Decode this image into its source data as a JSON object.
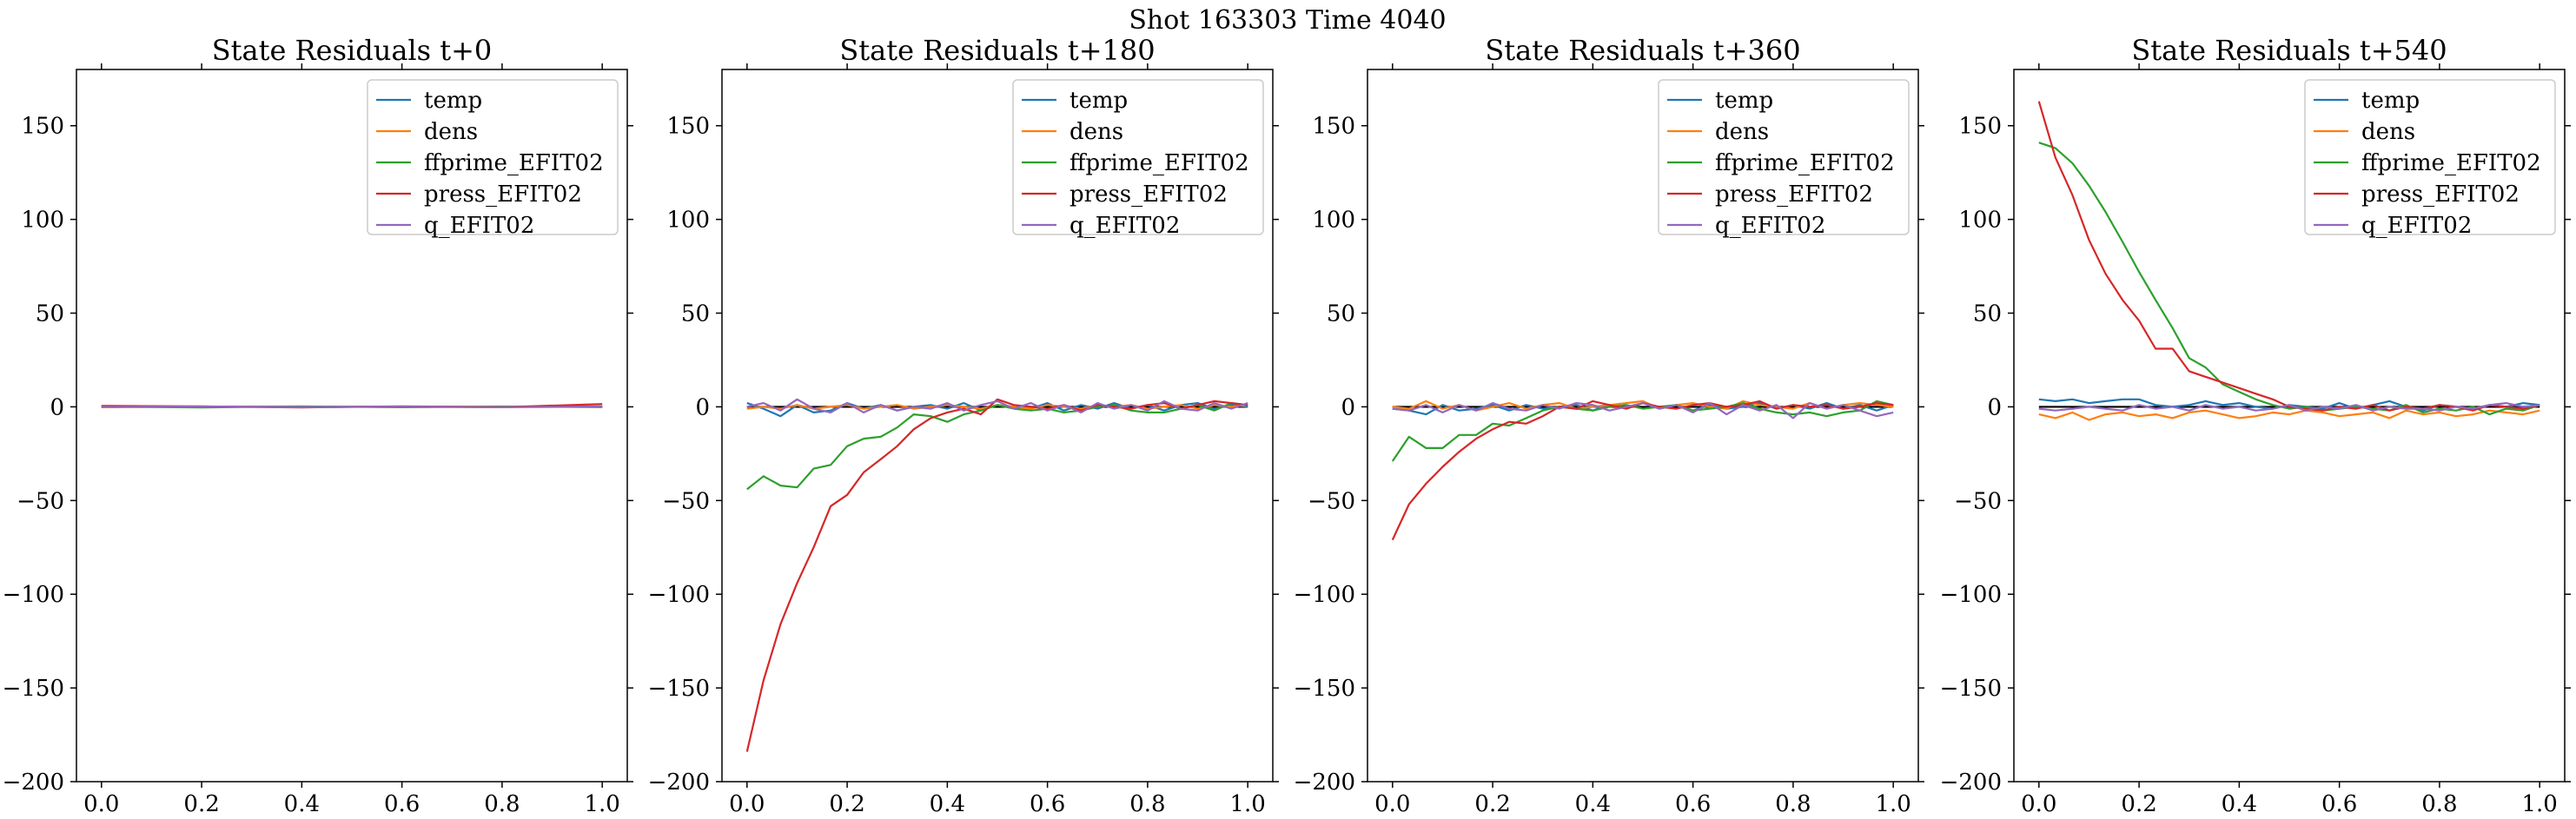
{
  "figure": {
    "suptitle": "Shot 163303   Time 4040"
  },
  "colors": {
    "temp": "#1f77b4",
    "dens": "#ff7f0e",
    "ffprime_EFIT02": "#2ca02c",
    "press_EFIT02": "#d62728",
    "q_EFIT02": "#9467bd",
    "zero_line": "#000000"
  },
  "chart_data": [
    {
      "type": "line",
      "title": "State Residuals t+0",
      "xlim": [
        -0.05,
        1.05
      ],
      "ylim": [
        -200,
        180
      ],
      "xticks": [
        "0.0",
        "0.2",
        "0.4",
        "0.6",
        "0.8",
        "1.0"
      ],
      "yticks": [
        "150",
        "100",
        "50",
        "0",
        "−50",
        "−100",
        "−150",
        "−200"
      ],
      "legend_position": "upper right",
      "x": [
        0.0,
        0.2,
        0.4,
        0.6,
        0.8,
        1.0
      ],
      "series": [
        {
          "name": "temp",
          "values": [
            0.3,
            0.2,
            -0.2,
            0.1,
            -0.1,
            0.3
          ]
        },
        {
          "name": "dens",
          "values": [
            -0.2,
            0.1,
            0.2,
            -0.1,
            0.2,
            -0.2
          ]
        },
        {
          "name": "ffprime_EFIT02",
          "values": [
            0.1,
            -0.3,
            0.2,
            -0.2,
            0.1,
            0.0
          ]
        },
        {
          "name": "press_EFIT02",
          "values": [
            0.5,
            0.2,
            -0.3,
            0.3,
            -0.2,
            1.5
          ]
        },
        {
          "name": "q_EFIT02",
          "values": [
            -0.1,
            0.2,
            -0.1,
            0.1,
            -0.2,
            0.1
          ]
        }
      ]
    },
    {
      "type": "line",
      "title": "State Residuals t+180",
      "xlim": [
        -0.05,
        1.05
      ],
      "ylim": [
        -200,
        180
      ],
      "xticks": [
        "0.0",
        "0.2",
        "0.4",
        "0.6",
        "0.8",
        "1.0"
      ],
      "yticks": [
        "150",
        "100",
        "50",
        "0",
        "−50",
        "−100",
        "−150",
        "−200"
      ],
      "legend_position": "upper right",
      "x": [
        0.0,
        0.033,
        0.067,
        0.1,
        0.133,
        0.167,
        0.2,
        0.233,
        0.267,
        0.3,
        0.333,
        0.367,
        0.4,
        0.433,
        0.467,
        0.5,
        0.533,
        0.567,
        0.6,
        0.633,
        0.667,
        0.7,
        0.733,
        0.767,
        0.8,
        0.833,
        0.867,
        0.9,
        0.933,
        0.967,
        1.0
      ],
      "series": [
        {
          "name": "temp",
          "values": [
            2,
            -1,
            -5,
            1,
            -3,
            -2,
            2,
            -1,
            1,
            -2,
            0,
            1,
            -1,
            2,
            -2,
            1,
            0,
            -1,
            2,
            -2,
            1,
            -1,
            2,
            -1,
            1,
            -2,
            1,
            2,
            -1,
            1,
            0
          ]
        },
        {
          "name": "dens",
          "values": [
            -1,
            0,
            -1,
            1,
            -1,
            0,
            1,
            -1,
            0,
            1,
            -1,
            0,
            1,
            0,
            -1,
            1,
            0,
            -1,
            1,
            0,
            -1,
            1,
            0,
            1,
            -1,
            0,
            1,
            -1,
            1,
            0,
            1
          ]
        },
        {
          "name": "ffprime_EFIT02",
          "values": [
            -44,
            -37,
            -42,
            -43,
            -33,
            -31,
            -21,
            -17,
            -16,
            -11,
            -4,
            -5,
            -8,
            -4,
            -2,
            1,
            -1,
            -2,
            -1,
            -3,
            -2,
            0,
            1,
            -2,
            -3,
            -3,
            -1,
            1,
            -2,
            2,
            1
          ]
        },
        {
          "name": "press_EFIT02",
          "values": [
            -184,
            -146,
            -116,
            -94,
            -75,
            -53,
            -47,
            -35,
            -28,
            -21,
            -12,
            -6,
            -3,
            -1,
            -4,
            4,
            1,
            0,
            -1,
            1,
            -2,
            1,
            0,
            -1,
            1,
            2,
            -1,
            1,
            3,
            2,
            1
          ]
        },
        {
          "name": "q_EFIT02",
          "values": [
            0,
            2,
            -2,
            4,
            -1,
            -3,
            2,
            -3,
            1,
            -2,
            0,
            -1,
            2,
            -2,
            1,
            3,
            -1,
            2,
            -2,
            1,
            -3,
            2,
            -1,
            1,
            -2,
            3,
            -1,
            -2,
            2,
            -1,
            2
          ]
        }
      ]
    },
    {
      "type": "line",
      "title": "State Residuals t+360",
      "xlim": [
        -0.05,
        1.05
      ],
      "ylim": [
        -200,
        180
      ],
      "xticks": [
        "0.0",
        "0.2",
        "0.4",
        "0.6",
        "0.8",
        "1.0"
      ],
      "yticks": [
        "150",
        "100",
        "50",
        "0",
        "−50",
        "−100",
        "−150",
        "−200"
      ],
      "legend_position": "upper right",
      "x": [
        0.0,
        0.033,
        0.067,
        0.1,
        0.133,
        0.167,
        0.2,
        0.233,
        0.267,
        0.3,
        0.333,
        0.367,
        0.4,
        0.433,
        0.467,
        0.5,
        0.533,
        0.567,
        0.6,
        0.633,
        0.667,
        0.7,
        0.733,
        0.767,
        0.8,
        0.833,
        0.867,
        0.9,
        0.933,
        0.967,
        1.0
      ],
      "series": [
        {
          "name": "temp",
          "values": [
            -1,
            -2,
            -4,
            1,
            -2,
            -1,
            1,
            -2,
            1,
            -1,
            0,
            1,
            -2,
            1,
            -1,
            2,
            -1,
            1,
            -2,
            1,
            -1,
            0,
            2,
            -1,
            1,
            -1,
            2,
            -1,
            1,
            -2,
            1
          ]
        },
        {
          "name": "dens",
          "values": [
            0,
            -1,
            3,
            -1,
            1,
            -2,
            0,
            2,
            -1,
            1,
            2,
            -1,
            0,
            1,
            2,
            3,
            -1,
            1,
            2,
            0,
            -1,
            3,
            1,
            0,
            -1,
            2,
            -1,
            1,
            2,
            1,
            0
          ]
        },
        {
          "name": "ffprime_EFIT02",
          "values": [
            -29,
            -16,
            -22,
            -22,
            -15,
            -15,
            -9,
            -10,
            -6,
            -2,
            0,
            -1,
            -2,
            0,
            1,
            -1,
            0,
            1,
            -2,
            -1,
            0,
            2,
            -1,
            -3,
            -4,
            -3,
            -5,
            -3,
            -2,
            3,
            1
          ]
        },
        {
          "name": "press_EFIT02",
          "values": [
            -71,
            -52,
            -41,
            -32,
            -24,
            -17,
            -12,
            -8,
            -9,
            -5,
            0,
            -1,
            3,
            1,
            -1,
            2,
            0,
            -1,
            1,
            2,
            0,
            1,
            3,
            -1,
            1,
            0,
            1,
            -1,
            0,
            2,
            1
          ]
        },
        {
          "name": "q_EFIT02",
          "values": [
            -1,
            -2,
            1,
            -3,
            1,
            -2,
            2,
            -1,
            -2,
            1,
            -1,
            2,
            1,
            -2,
            0,
            2,
            -1,
            1,
            -3,
            2,
            -4,
            1,
            -2,
            1,
            -6,
            2,
            -1,
            1,
            -2,
            -5,
            -3
          ]
        }
      ]
    },
    {
      "type": "line",
      "title": "State Residuals t+540",
      "xlim": [
        -0.05,
        1.05
      ],
      "ylim": [
        -200,
        180
      ],
      "xticks": [
        "0.0",
        "0.2",
        "0.4",
        "0.6",
        "0.8",
        "1.0"
      ],
      "yticks": [
        "150",
        "100",
        "50",
        "0",
        "−50",
        "−100",
        "−150",
        "−200"
      ],
      "legend_position": "upper right",
      "x": [
        0.0,
        0.033,
        0.067,
        0.1,
        0.133,
        0.167,
        0.2,
        0.233,
        0.267,
        0.3,
        0.333,
        0.367,
        0.4,
        0.433,
        0.467,
        0.5,
        0.533,
        0.567,
        0.6,
        0.633,
        0.667,
        0.7,
        0.733,
        0.767,
        0.8,
        0.833,
        0.867,
        0.9,
        0.933,
        0.967,
        1.0
      ],
      "series": [
        {
          "name": "temp",
          "values": [
            4,
            3,
            4,
            2,
            3,
            4,
            4,
            1,
            0,
            1,
            3,
            1,
            2,
            0,
            -1,
            1,
            0,
            -1,
            2,
            -1,
            1,
            3,
            0,
            -2,
            1,
            0,
            -1,
            1,
            0,
            2,
            1
          ]
        },
        {
          "name": "dens",
          "values": [
            -4,
            -6,
            -3,
            -7,
            -4,
            -3,
            -5,
            -4,
            -6,
            -3,
            -2,
            -4,
            -6,
            -5,
            -3,
            -4,
            -2,
            -3,
            -5,
            -4,
            -3,
            -6,
            -2,
            -4,
            -3,
            -5,
            -4,
            -2,
            -3,
            -4,
            -2
          ]
        },
        {
          "name": "ffprime_EFIT02",
          "values": [
            141,
            138,
            130,
            118,
            104,
            88,
            72,
            57,
            42,
            26,
            21,
            12,
            8,
            4,
            1,
            -1,
            0,
            -2,
            -1,
            0,
            -1,
            -2,
            1,
            -3,
            -1,
            -2,
            0,
            -4,
            -1,
            -2,
            1
          ]
        },
        {
          "name": "press_EFIT02",
          "values": [
            163,
            133,
            113,
            89,
            71,
            57,
            46,
            31,
            31,
            19,
            16,
            13,
            10,
            7,
            4,
            0,
            -1,
            -2,
            0,
            -1,
            1,
            -2,
            0,
            -1,
            1,
            0,
            -2,
            1,
            0,
            -1,
            1
          ]
        },
        {
          "name": "q_EFIT02",
          "values": [
            -1,
            -2,
            -1,
            0,
            -1,
            -2,
            1,
            -1,
            0,
            -2,
            1,
            -1,
            0,
            -2,
            -1,
            1,
            -2,
            0,
            -1,
            1,
            -2,
            0,
            -1,
            -1,
            -2,
            0,
            -1,
            1,
            2,
            0,
            1
          ]
        }
      ]
    }
  ]
}
